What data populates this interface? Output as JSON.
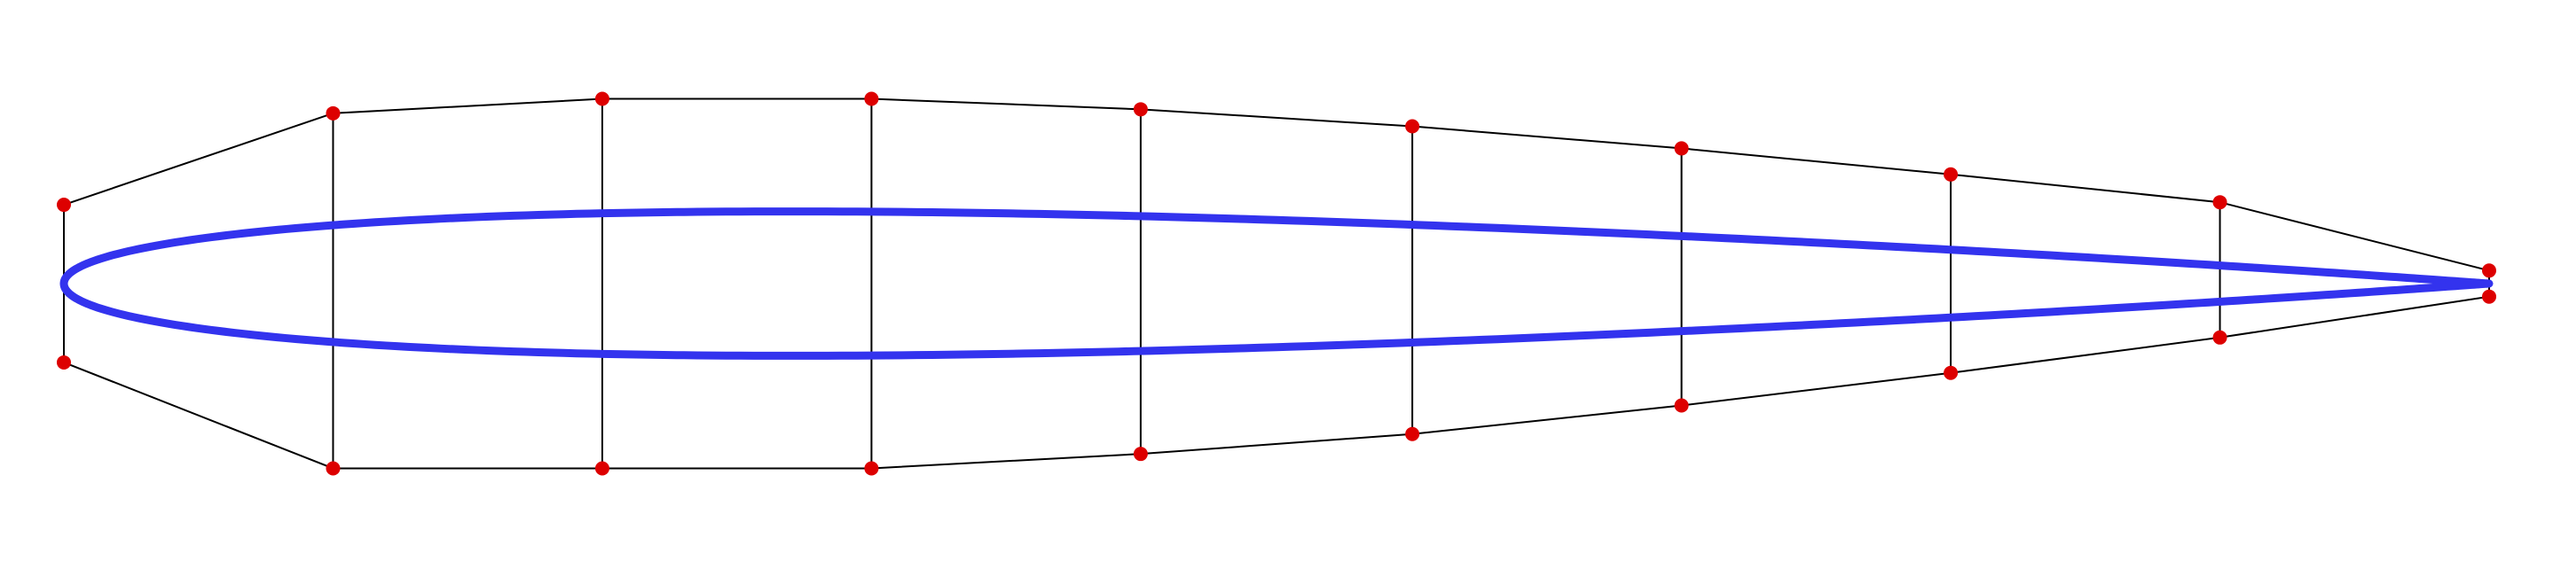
{
  "diagram": {
    "type": "airfoil-control-lattice",
    "colors": {
      "airfoil": "#3333ee",
      "frame": "#000000",
      "control_point": "#dd0000",
      "background": "#ffffff"
    },
    "control_points": {
      "upper": [
        [
          0.0,
          0.218
        ],
        [
          0.111,
          0.471
        ],
        [
          0.222,
          0.511
        ],
        [
          0.333,
          0.511
        ],
        [
          0.444,
          0.482
        ],
        [
          0.556,
          0.435
        ],
        [
          0.667,
          0.374
        ],
        [
          0.778,
          0.302
        ],
        [
          0.889,
          0.225
        ],
        [
          1.0,
          0.036
        ]
      ],
      "lower": [
        [
          0.0,
          -0.218
        ],
        [
          0.111,
          -0.511
        ],
        [
          0.222,
          -0.511
        ],
        [
          0.333,
          -0.511
        ],
        [
          0.444,
          -0.471
        ],
        [
          0.556,
          -0.416
        ],
        [
          0.667,
          -0.337
        ],
        [
          0.778,
          -0.247
        ],
        [
          0.889,
          -0.149
        ],
        [
          1.0,
          -0.036
        ]
      ]
    },
    "airfoil_thickness_ratio": 0.12
  }
}
